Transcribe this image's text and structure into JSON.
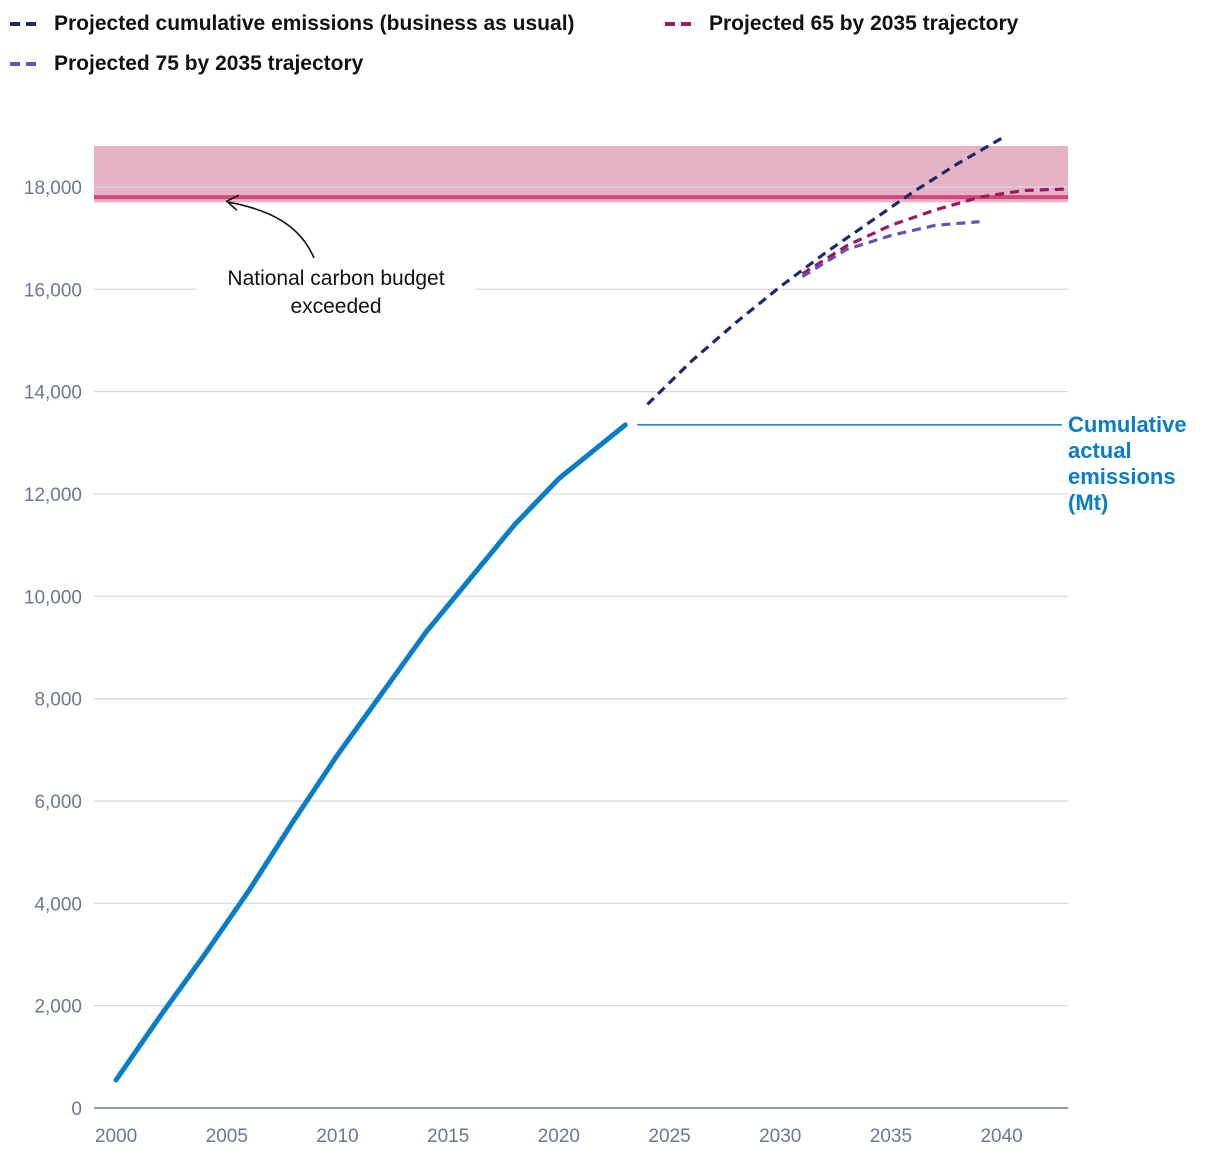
{
  "legend": [
    {
      "label": "Projected cumulative emissions (business as usual)",
      "color": "#1a2a6c"
    },
    {
      "label": "Projected 65 by 2035 trajectory",
      "color": "#a0185a"
    },
    {
      "label": "Projected 75 by 2035 trajectory",
      "color": "#6a4fb8"
    }
  ],
  "chart_data": {
    "type": "line",
    "title": "",
    "xlabel": "",
    "ylabel": "",
    "xlim": [
      1999,
      2043
    ],
    "ylim": [
      0,
      18800
    ],
    "x_ticks": [
      2000,
      2005,
      2010,
      2015,
      2020,
      2025,
      2030,
      2035,
      2040
    ],
    "x_tick_labels": [
      "2000",
      "2005",
      "2010",
      "2015",
      "2020",
      "2025",
      "2030",
      "2035",
      "2040"
    ],
    "y_ticks": [
      0,
      2000,
      4000,
      6000,
      8000,
      10000,
      12000,
      14000,
      16000,
      18000
    ],
    "y_tick_labels": [
      "0",
      "2,000",
      "4,000",
      "6,000",
      "8,000",
      "10,000",
      "12,000",
      "14,000",
      "16,000",
      "18,000"
    ],
    "budget": {
      "value": 17800,
      "band": [
        17700,
        18800
      ],
      "line_color": "#d0487a",
      "band_color": "#e5b3c5",
      "annotation": [
        "National carbon budget",
        "exceeded"
      ],
      "annotation_target_x": 2005
    },
    "series": [
      {
        "name": "Cumulative actual emissions (Mt)",
        "label_lines": [
          "Cumulative",
          "actual",
          "emissions",
          "(Mt)"
        ],
        "color": "#0a7dc9",
        "style": "solid",
        "x": [
          2000,
          2002,
          2004,
          2006,
          2008,
          2010,
          2012,
          2014,
          2016,
          2018,
          2020,
          2022,
          2023
        ],
        "y": [
          550,
          1800,
          3000,
          4250,
          5600,
          6900,
          8100,
          9300,
          10350,
          11400,
          12300,
          13000,
          13350
        ]
      },
      {
        "name": "Projected cumulative emissions (business as usual)",
        "color": "#1a2a6c",
        "style": "dashed",
        "x": [
          2024,
          2026,
          2028,
          2030,
          2032,
          2034,
          2036,
          2038,
          2040
        ],
        "y": [
          13750,
          14600,
          15350,
          16050,
          16700,
          17300,
          17900,
          18450,
          18950
        ]
      },
      {
        "name": "Projected 65 by 2035 trajectory",
        "color": "#a0185a",
        "style": "dashed",
        "x": [
          2031,
          2033,
          2035,
          2037,
          2039,
          2041,
          2043
        ],
        "y": [
          16300,
          16850,
          17250,
          17550,
          17800,
          17930,
          17960
        ]
      },
      {
        "name": "Projected 75 by 2035 trajectory",
        "color": "#6a4fb8",
        "style": "dashed",
        "x": [
          2031,
          2033,
          2035,
          2037,
          2039
        ],
        "y": [
          16250,
          16780,
          17050,
          17250,
          17320
        ]
      }
    ]
  }
}
